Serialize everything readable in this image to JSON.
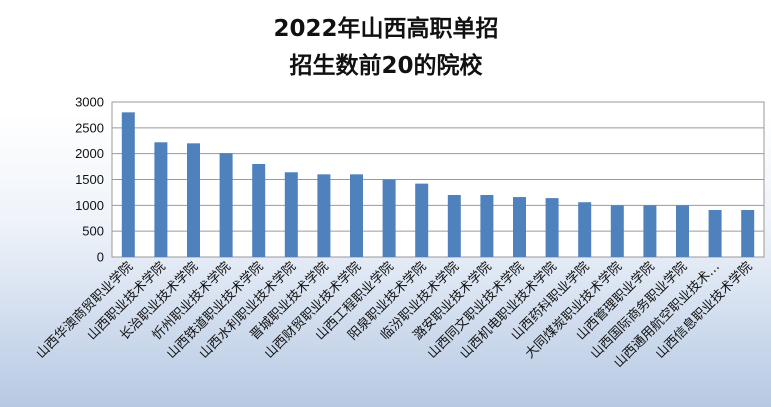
{
  "chart_data": {
    "type": "bar",
    "title_lines": [
      "2022年山西高职单招",
      "招生数前20的院校"
    ],
    "xlabel": "",
    "ylabel": "",
    "ylim": [
      0,
      3000
    ],
    "yticks": [
      0,
      500,
      1000,
      1500,
      2000,
      2500,
      3000
    ],
    "grid": true,
    "legend": "none",
    "bar_color": "#4f81bd",
    "categories": [
      "山西华澳商贸职业学院",
      "山西职业技术学院",
      "长治职业技术学院",
      "忻州职业技术学院",
      "山西铁道职业技术学院",
      "山西水利职业技术学院",
      "晋城职业技术学院",
      "山西财贸职业技术学院",
      "山西工程职业学院",
      "阳泉职业技术学院",
      "临汾职业技术学院",
      "潞安职业技术学院",
      "山西同文职业技术学院",
      "山西机电职业技术学院",
      "山西药科职业学院",
      "大同煤炭职业技术学院",
      "山西管理职业学院",
      "山西国际商务职业学院",
      "山西通用航空职业技术…",
      "山西信息职业技术学院"
    ],
    "values": [
      2800,
      2220,
      2200,
      2010,
      1800,
      1640,
      1600,
      1600,
      1500,
      1420,
      1200,
      1200,
      1160,
      1140,
      1060,
      1000,
      1000,
      1000,
      910,
      910
    ]
  }
}
